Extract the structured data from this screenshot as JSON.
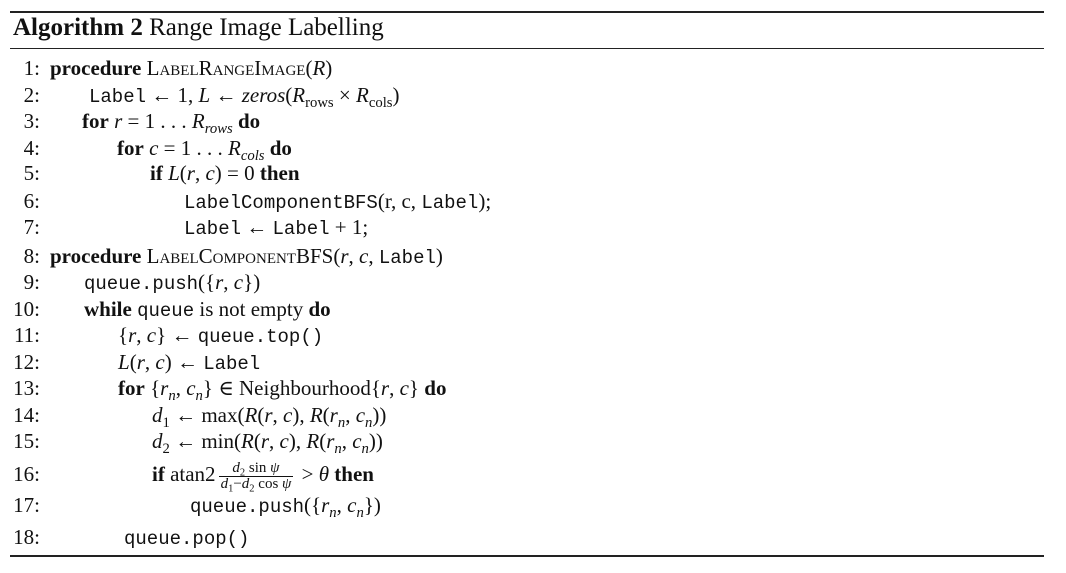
{
  "title": {
    "label": "Algorithm 2",
    "text": "Range Image Labelling"
  },
  "lines": [
    {
      "num": "1:",
      "kw": "procedure",
      "text": "LABELRANGEIMAGE(R)"
    },
    {
      "num": "2:",
      "text": "Label ← 1, L ← zeros(R_rows × R_cols)"
    },
    {
      "num": "3:",
      "kw": "for",
      "text": "r = 1 . . . R_rows",
      "kw2": "do"
    },
    {
      "num": "4:",
      "kw": "for",
      "text": "c = 1 . . . R_cols",
      "kw2": "do"
    },
    {
      "num": "5:",
      "kw": "if",
      "text": "L(r, c) = 0",
      "kw2": "then"
    },
    {
      "num": "6:",
      "text": "LabelComponentBFS(r, c, Label);"
    },
    {
      "num": "7:",
      "text": "Label ← Label + 1;"
    },
    {
      "num": "8:",
      "kw": "procedure",
      "text": "LABELCOMPONENTBFS(r, c, Label)"
    },
    {
      "num": "9:",
      "text": "queue.push({r, c})"
    },
    {
      "num": "10:",
      "kw": "while",
      "text": "queue is not empty",
      "kw2": "do"
    },
    {
      "num": "11:",
      "text": "{r, c} ← queue.top()"
    },
    {
      "num": "12:",
      "text": "L(r, c) ← Label"
    },
    {
      "num": "13:",
      "kw": "for",
      "text": "{r_n, c_n} ∈ Neighbourhood{r, c}",
      "kw2": "do"
    },
    {
      "num": "14:",
      "text": "d_1 ← max(R(r, c), R(r_n, c_n))"
    },
    {
      "num": "15:",
      "text": "d_2 ← min(R(r, c), R(r_n, c_n))"
    },
    {
      "num": "16:",
      "kw": "if",
      "text": "atan2 (d_2 sin ψ)/(d_1 − d_2 cos ψ) > θ",
      "kw2": "then"
    },
    {
      "num": "17:",
      "text": "queue.push({r_n, c_n})"
    },
    {
      "num": "18:",
      "text": "queue.pop()"
    }
  ]
}
